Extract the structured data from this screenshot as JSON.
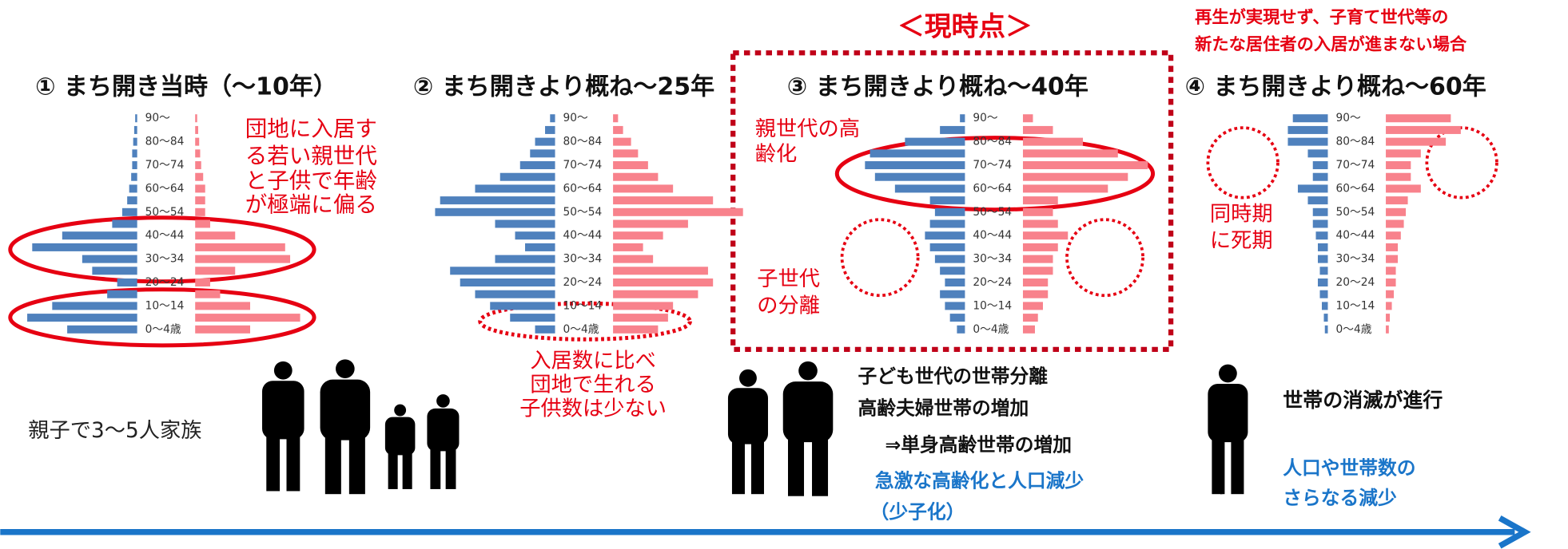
{
  "chart_data": [
    {
      "type": "pyramid",
      "title": "① まち開き当時（～10年）",
      "categories": [
        "0～4歳",
        null,
        "10～14",
        null,
        "20～24",
        null,
        "30～34",
        null,
        "40～44",
        null,
        "50～54",
        null,
        "60～64",
        null,
        "70～74",
        null,
        "80～84",
        null,
        "90～"
      ],
      "series": [
        {
          "color": "#4f81bd",
          "values": [
            70,
            110,
            85,
            30,
            20,
            45,
            55,
            105,
            75,
            25,
            15,
            10,
            8,
            6,
            5,
            5,
            4,
            3,
            2
          ]
        },
        {
          "color": "#f8828c",
          "values": [
            55,
            105,
            55,
            25,
            15,
            40,
            95,
            90,
            40,
            15,
            10,
            10,
            10,
            8,
            6,
            5,
            4,
            3,
            2
          ]
        }
      ],
      "annotations": [
        {
          "lines": [
            "団地に入居す",
            "る若い親世代",
            "と子供で年齢",
            "が極端に偏る"
          ],
          "color": "#e60012"
        },
        {
          "lines": [
            "親子で3～5人家族"
          ],
          "color": "#222222"
        }
      ]
    },
    {
      "type": "pyramid",
      "title": "② まち開きより概ね～25年",
      "categories": [
        "0～4歳",
        null,
        "10～14",
        null,
        "20～24",
        null,
        "30～34",
        null,
        "40～44",
        null,
        "50～54",
        null,
        "60～64",
        null,
        "70～74",
        null,
        "80～84",
        null,
        "90～"
      ],
      "series": [
        {
          "color": "#4f81bd",
          "values": [
            20,
            45,
            65,
            80,
            95,
            105,
            60,
            30,
            40,
            60,
            120,
            115,
            80,
            55,
            35,
            25,
            20,
            10,
            5
          ]
        },
        {
          "color": "#f8828c",
          "values": [
            45,
            55,
            60,
            85,
            100,
            95,
            40,
            30,
            50,
            75,
            130,
            100,
            60,
            45,
            35,
            25,
            18,
            10,
            5
          ]
        }
      ],
      "annotations": [
        {
          "lines": [
            "入居数に比べ",
            "団地で生れる",
            "子供数は少ない"
          ],
          "color": "#e60012"
        }
      ]
    },
    {
      "type": "pyramid",
      "title": "③ まち開きより概ね～40年",
      "categories": [
        "0～4歳",
        null,
        "10～14",
        null,
        "20～24",
        null,
        "30～34",
        null,
        "40～44",
        null,
        "50～54",
        null,
        "60～64",
        null,
        "70～74",
        null,
        "80～84",
        null,
        "90～"
      ],
      "series": [
        {
          "color": "#4f81bd",
          "values": [
            8,
            15,
            20,
            25,
            20,
            25,
            30,
            35,
            40,
            35,
            30,
            35,
            70,
            90,
            100,
            95,
            60,
            25,
            5
          ]
        },
        {
          "color": "#f8828c",
          "values": [
            12,
            15,
            20,
            25,
            25,
            30,
            30,
            35,
            45,
            35,
            30,
            35,
            85,
            105,
            125,
            95,
            60,
            30,
            10
          ]
        }
      ],
      "annotations": [
        {
          "lines": [
            "＜現時点＞"
          ],
          "color": "#e60012"
        },
        {
          "lines": [
            "親世代の高",
            "齢化"
          ],
          "color": "#e60012"
        },
        {
          "lines": [
            "子世代",
            "の分離"
          ],
          "color": "#e60012"
        },
        {
          "lines": [
            "子ども世代の世帯分離",
            "高齢夫婦世帯の増加",
            "⇒単身高齢世帯の増加"
          ],
          "color": "#111111"
        },
        {
          "lines": [
            "急激な高齢化と人口減少",
            "（少子化）"
          ],
          "color": "#1a75c9"
        }
      ]
    },
    {
      "type": "pyramid",
      "title": "④ まち開きより概ね～60年",
      "categories": [
        "0～4歳",
        null,
        "10～14",
        null,
        "20～24",
        null,
        "30～34",
        null,
        "40～44",
        null,
        "50～54",
        null,
        "60～64",
        null,
        "70～74",
        null,
        "80～84",
        null,
        "90～"
      ],
      "series": [
        {
          "color": "#4f81bd",
          "values": [
            3,
            4,
            6,
            8,
            10,
            8,
            10,
            10,
            12,
            15,
            15,
            20,
            30,
            15,
            15,
            20,
            40,
            40,
            35
          ]
        },
        {
          "color": "#f8828c",
          "values": [
            3,
            4,
            6,
            8,
            10,
            10,
            12,
            12,
            15,
            18,
            20,
            22,
            35,
            25,
            25,
            35,
            60,
            75,
            65
          ]
        }
      ],
      "annotations": [
        {
          "lines": [
            "再生が実現せず、子育て世代等の",
            "新たな居住者の入居が進まない場合"
          ],
          "color": "#e60012"
        },
        {
          "lines": [
            "同時期",
            "に死期"
          ],
          "color": "#e60012"
        },
        {
          "lines": [
            "世帯の消滅が進行"
          ],
          "color": "#111111"
        },
        {
          "lines": [
            "人口や世帯数の",
            "さらなる減少"
          ],
          "color": "#1a75c9"
        }
      ]
    }
  ]
}
